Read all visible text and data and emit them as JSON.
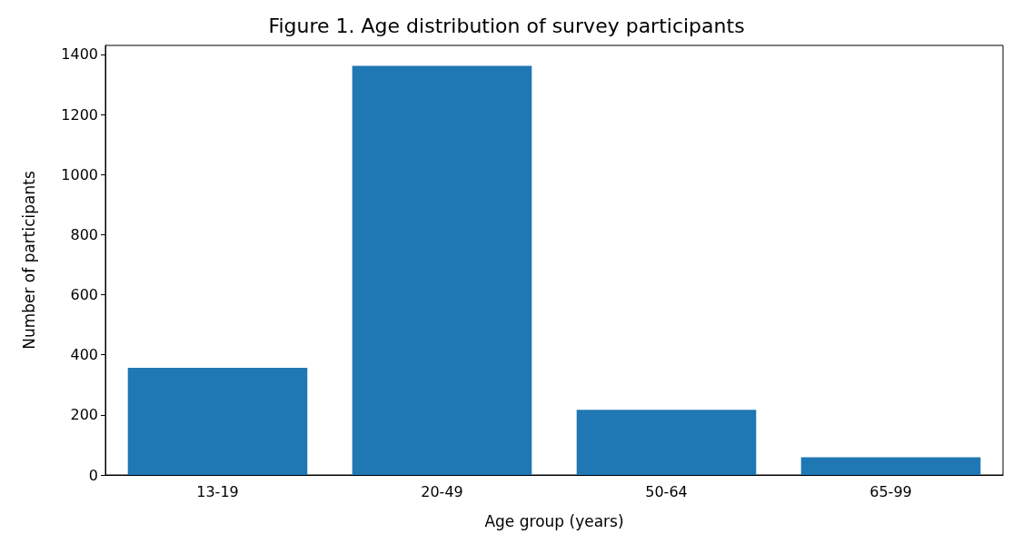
{
  "chart_data": {
    "type": "bar",
    "title": "Figure 1. Age distribution of survey participants",
    "xlabel": "Age group (years)",
    "ylabel": "Number of participants",
    "categories": [
      "13-19",
      "20-49",
      "50-64",
      "65-99"
    ],
    "values": [
      357,
      1362,
      217,
      59
    ],
    "color": "#1f77b4",
    "ylim": [
      0,
      1430
    ],
    "yticks": [
      0,
      200,
      400,
      600,
      800,
      1000,
      1200,
      1400
    ],
    "grid": false
  }
}
